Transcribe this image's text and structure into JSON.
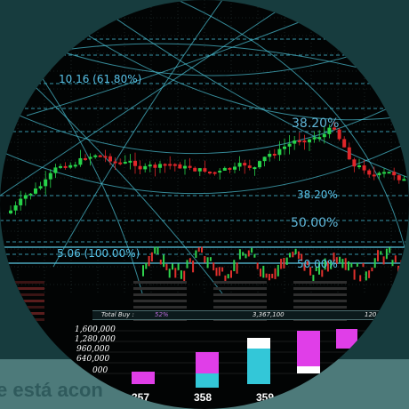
{
  "footer_text": "e está acon",
  "fib_levels": [
    {
      "label": "10.16 (61.80%)"
    },
    {
      "label": "38.20%"
    },
    {
      "label": "38.20%"
    },
    {
      "label": "50.00%"
    },
    {
      "label": "5.06 (100.00%)"
    },
    {
      "label": "50.00%"
    }
  ],
  "order_book": {
    "total_buy_label": "Total Buy :",
    "total_buy_pct": "52%",
    "total_buy_value": "3,367,100",
    "total_buy_right": "120"
  },
  "chart_data": {
    "type": "bar",
    "title": "",
    "yticks": [
      "1,600,000",
      "1,280,000",
      "960,000",
      "640,000",
      "000"
    ],
    "categories": [
      "357",
      "358",
      "359"
    ],
    "colors": {
      "magenta": "#e03ee8",
      "cyan": "#33c7d8"
    }
  }
}
